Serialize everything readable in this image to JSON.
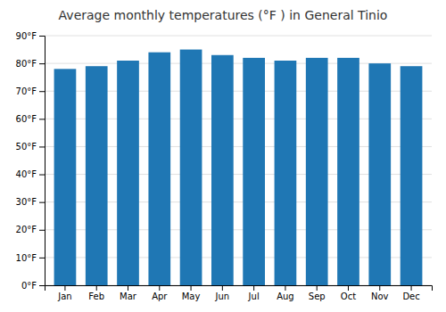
{
  "chart_data": {
    "type": "bar",
    "title": "Average monthly temperatures (°F ) in General Tinio",
    "categories": [
      "Jan",
      "Feb",
      "Mar",
      "Apr",
      "May",
      "Jun",
      "Jul",
      "Aug",
      "Sep",
      "Oct",
      "Nov",
      "Dec"
    ],
    "values": [
      78,
      79,
      81,
      84,
      85,
      83,
      82,
      81,
      82,
      82,
      80,
      79
    ],
    "ylim": [
      0,
      90
    ],
    "yticks": [
      {
        "value": 0,
        "label": "0°F"
      },
      {
        "value": 10,
        "label": "10°F"
      },
      {
        "value": 20,
        "label": "20°F"
      },
      {
        "value": 30,
        "label": "30°F"
      },
      {
        "value": 40,
        "label": "40°F"
      },
      {
        "value": 50,
        "label": "50°F"
      },
      {
        "value": 60,
        "label": "60°F"
      },
      {
        "value": 70,
        "label": "70°F"
      },
      {
        "value": 80,
        "label": "80°F"
      },
      {
        "value": 90,
        "label": "90°F"
      }
    ],
    "grid": true
  }
}
